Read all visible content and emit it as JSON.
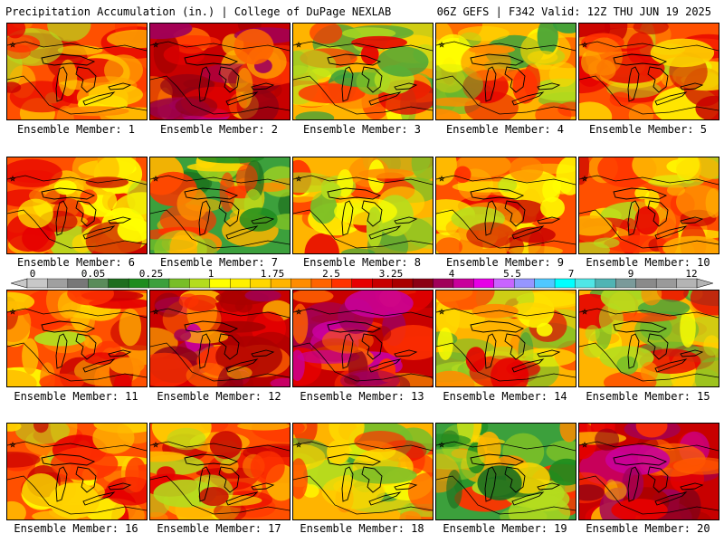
{
  "header": {
    "title": "Precipitation Accumulation (in.) | College of DuPage NEXLAB",
    "run_info": "06Z GEFS | F342 Valid: 12Z THU JUN 19 2025"
  },
  "panels": [
    {
      "label": "Ensemble Member: 1",
      "scheme": "red"
    },
    {
      "label": "Ensemble Member: 2",
      "scheme": "darkred"
    },
    {
      "label": "Ensemble Member: 3",
      "scheme": "mixed"
    },
    {
      "label": "Ensemble Member: 4",
      "scheme": "mixed"
    },
    {
      "label": "Ensemble Member: 5",
      "scheme": "red"
    },
    {
      "label": "Ensemble Member: 6",
      "scheme": "red"
    },
    {
      "label": "Ensemble Member: 7",
      "scheme": "green"
    },
    {
      "label": "Ensemble Member: 8",
      "scheme": "mixed"
    },
    {
      "label": "Ensemble Member: 9",
      "scheme": "red"
    },
    {
      "label": "Ensemble Member: 10",
      "scheme": "red"
    },
    {
      "label": "Ensemble Member: 11",
      "scheme": "red"
    },
    {
      "label": "Ensemble Member: 12",
      "scheme": "darkred"
    },
    {
      "label": "Ensemble Member: 13",
      "scheme": "darkred"
    },
    {
      "label": "Ensemble Member: 14",
      "scheme": "mixed"
    },
    {
      "label": "Ensemble Member: 15",
      "scheme": "mixed"
    },
    {
      "label": "Ensemble Member: 16",
      "scheme": "red"
    },
    {
      "label": "Ensemble Member: 17",
      "scheme": "red"
    },
    {
      "label": "Ensemble Member: 18",
      "scheme": "mixed"
    },
    {
      "label": "Ensemble Member: 19",
      "scheme": "green"
    },
    {
      "label": "Ensemble Member: 20",
      "scheme": "darkred"
    }
  ],
  "colorbar": {
    "tick_labels": [
      "0",
      "0.05",
      "0.25",
      "1",
      "1.75",
      "2.5",
      "3.25",
      "4",
      "5.5",
      "7",
      "9",
      "12"
    ],
    "colors": [
      "#c8c8c8",
      "#a0a0a0",
      "#787878",
      "#5a8c5a",
      "#1e6e1e",
      "#1e8c1e",
      "#3ca03c",
      "#78be28",
      "#b4dc1e",
      "#ffff00",
      "#fff000",
      "#ffd700",
      "#ffb400",
      "#ff8c00",
      "#ff6400",
      "#ff3200",
      "#e60000",
      "#c80000",
      "#aa0000",
      "#8c0014",
      "#a0005a",
      "#c8009b",
      "#e600e6",
      "#c864ff",
      "#9696ff",
      "#50c8ff",
      "#00ffff",
      "#50e6e6",
      "#50b4b4",
      "#7a9a9a",
      "#8a8a8a",
      "#9a9a9a",
      "#b4b4b4"
    ]
  },
  "legend_note": ""
}
